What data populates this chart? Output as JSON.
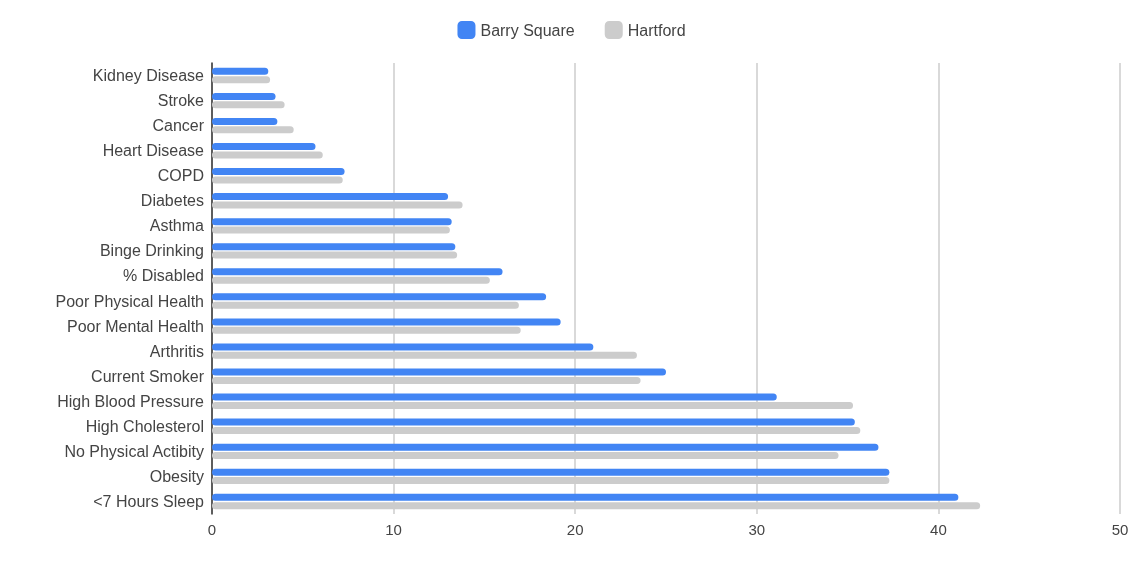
{
  "chart_data": {
    "type": "bar",
    "orientation": "horizontal",
    "categories": [
      "Kidney Disease",
      "Stroke",
      "Cancer",
      "Heart Disease",
      "COPD",
      "Diabetes",
      "Asthma",
      "Binge Drinking",
      "% Disabled",
      "Poor Physical Health",
      "Poor Mental Health",
      "Arthritis",
      "Current Smoker",
      "High Blood Pressure",
      "High Cholesterol",
      "No Physical Actibity",
      "Obesity",
      "<7 Hours Sleep"
    ],
    "series": [
      {
        "name": "Barry Square",
        "color": "#4285f4",
        "values": [
          3.1,
          3.5,
          3.6,
          5.7,
          7.3,
          13.0,
          13.2,
          13.4,
          16.0,
          18.4,
          19.2,
          21.0,
          25.0,
          31.1,
          35.4,
          36.7,
          37.3,
          41.1
        ]
      },
      {
        "name": "Hartford",
        "color": "#cccccc",
        "values": [
          3.2,
          4.0,
          4.5,
          6.1,
          7.2,
          13.8,
          13.1,
          13.5,
          15.3,
          16.9,
          17.0,
          23.4,
          23.6,
          35.3,
          35.7,
          34.5,
          37.3,
          42.3
        ]
      }
    ],
    "xlim": [
      0,
      50
    ],
    "xticks": [
      0,
      10,
      20,
      30,
      40,
      50
    ],
    "grid": "x",
    "legend": "top"
  }
}
